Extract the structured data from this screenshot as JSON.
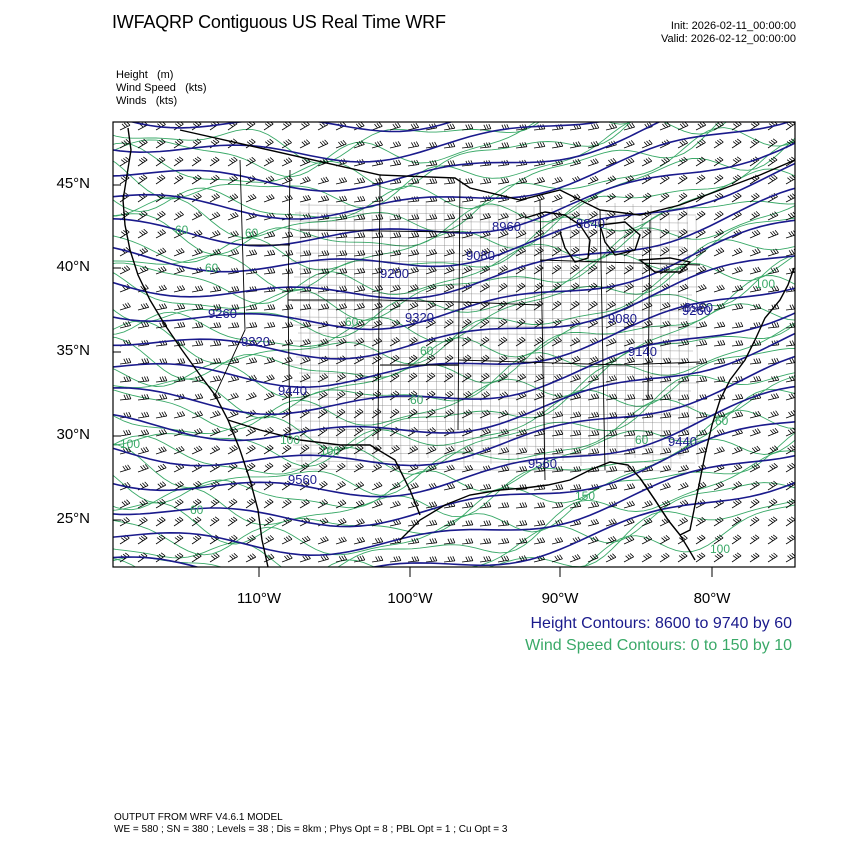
{
  "header": {
    "title": "IWFAQRP Contiguous US Real Time WRF",
    "init": "Init: 2026-02-11_00:00:00",
    "valid": "Valid: 2026-02-12_00:00:00"
  },
  "variables": [
    "Height   (m)",
    "Wind Speed   (kts)",
    "Winds   (kts)"
  ],
  "axes": {
    "lat_labels": [
      "45°N",
      "40°N",
      "35°N",
      "30°N",
      "25°N"
    ],
    "lon_labels": [
      "110°W",
      "100°W",
      "90°W",
      "80°W"
    ]
  },
  "height_contour_labels": [
    "9200",
    "9320",
    "9440",
    "9560",
    "9260",
    "9320",
    "9080",
    "8960",
    "8840",
    "9080",
    "9140",
    "9260",
    "8960",
    "9440",
    "9560"
  ],
  "wind_contour_labels": [
    "100",
    "100",
    "60",
    "60",
    "60",
    "60",
    "150",
    "100",
    "60",
    "60",
    "60",
    "100",
    "60",
    "60",
    "100"
  ],
  "legend": {
    "height": "Height Contours: 8600 to 9740 by 60",
    "wind": "Wind Speed Contours: 0 to 150 by 10"
  },
  "colors": {
    "height_contour": "#1a1a8c",
    "wind_contour": "#3aa968",
    "borders": "#000000"
  },
  "footer": {
    "line1": "OUTPUT FROM WRF V4.6.1 MODEL",
    "line2": "WE = 580 ; SN = 380 ; Levels = 38 ; Dis = 8km ; Phys Opt = 8 ; PBL Opt = 1 ; Cu Opt = 3"
  }
}
